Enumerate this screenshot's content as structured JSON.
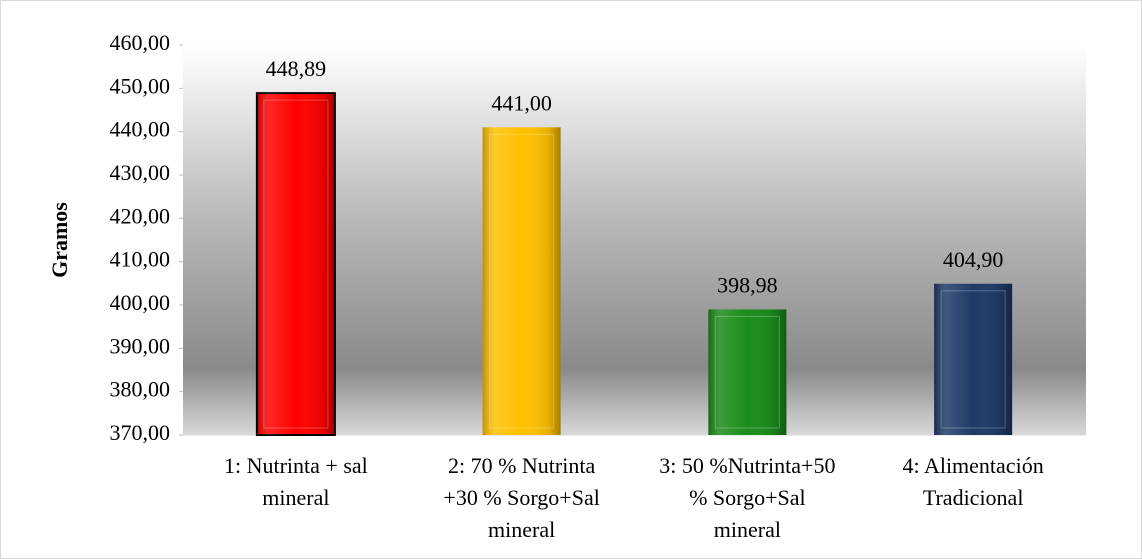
{
  "chart_data": {
    "type": "bar",
    "y_label": "Gramos",
    "categories": [
      [
        "1: Nutrinta + sal",
        "mineral"
      ],
      [
        "2: 70 % Nutrinta",
        "+30 % Sorgo+Sal",
        "mineral"
      ],
      [
        "3: 50  %Nutrinta+50",
        "% Sorgo+Sal",
        "mineral"
      ],
      [
        "4: Alimentación",
        "Tradicional"
      ]
    ],
    "values": [
      448.89,
      441.0,
      398.98,
      404.9
    ],
    "value_labels": [
      "448,89",
      "441,00",
      "398,98",
      "404,90"
    ],
    "colors": [
      "#ff0000",
      "#ffc000",
      "#1a8c1a",
      "#1f3a68"
    ],
    "ylim": [
      370,
      460
    ],
    "yticks": [
      {
        "value": 370,
        "label": "370,00"
      },
      {
        "value": 380,
        "label": "380,00"
      },
      {
        "value": 390,
        "label": "390,00"
      },
      {
        "value": 400,
        "label": "400,00"
      },
      {
        "value": 410,
        "label": "410,00"
      },
      {
        "value": 420,
        "label": "420,00"
      },
      {
        "value": 430,
        "label": "430,00"
      },
      {
        "value": 440,
        "label": "440,00"
      },
      {
        "value": 450,
        "label": "450,00"
      },
      {
        "value": 460,
        "label": "460,00"
      }
    ]
  }
}
